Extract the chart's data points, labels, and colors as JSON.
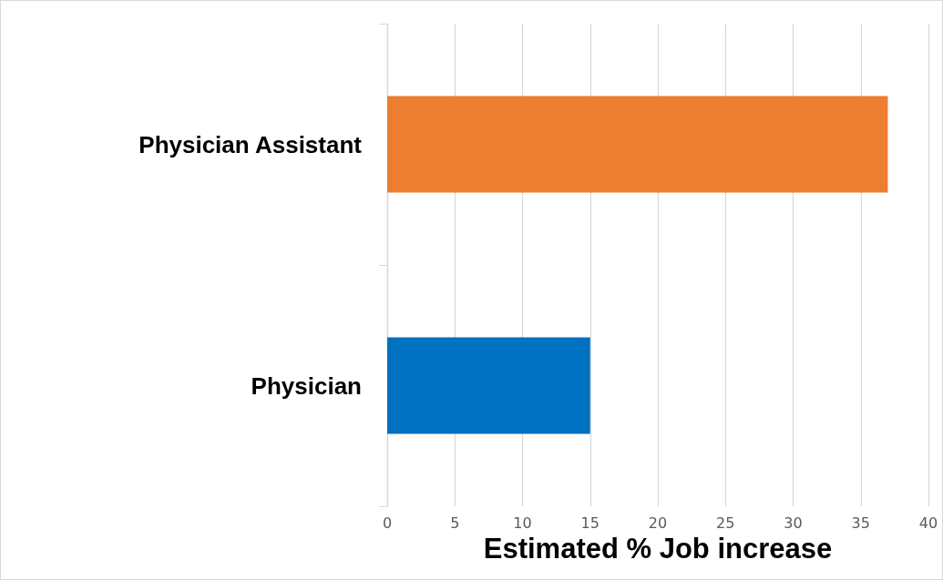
{
  "chart_data": {
    "type": "bar",
    "orientation": "horizontal",
    "categories": [
      "Physician Assistant",
      "Physician"
    ],
    "values": [
      37,
      15
    ],
    "colors": [
      "#ed7d31",
      "#0070c0"
    ],
    "xlabel": "Estimated % Job increase",
    "xlim": [
      0,
      40
    ],
    "xticks": [
      0,
      5,
      10,
      15,
      20,
      25,
      30,
      35,
      40
    ],
    "grid": "x"
  }
}
